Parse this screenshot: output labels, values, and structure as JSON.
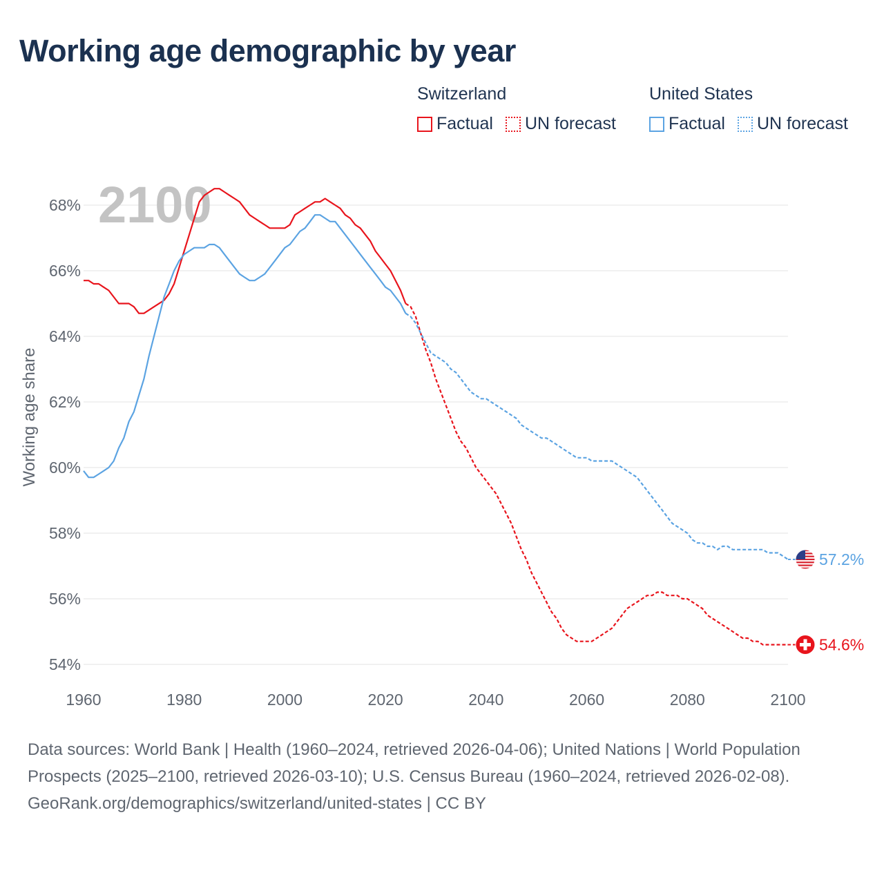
{
  "title": "Working age demographic by year",
  "legend": {
    "groups": [
      {
        "name": "Switzerland",
        "color": "#e8141c",
        "entries": [
          {
            "label": "Factual",
            "style": "solid"
          },
          {
            "label": "UN forecast",
            "style": "dotted"
          }
        ]
      },
      {
        "name": "United States",
        "color": "#5ba3e2",
        "entries": [
          {
            "label": "Factual",
            "style": "solid"
          },
          {
            "label": "UN forecast",
            "style": "dotted"
          }
        ]
      }
    ]
  },
  "chart_data": {
    "type": "line",
    "year_label": "2100",
    "ylabel": "Working age share",
    "xlabel": "",
    "xlim": [
      1960,
      2100
    ],
    "ylim": [
      54,
      68
    ],
    "xticks": [
      1960,
      1980,
      2000,
      2020,
      2040,
      2060,
      2080,
      2100
    ],
    "x_tick_labels": [
      "1960",
      "1980",
      "2000",
      "2020",
      "2040",
      "2060",
      "2080",
      "2100"
    ],
    "yticks": [
      54,
      56,
      58,
      60,
      62,
      64,
      66,
      68
    ],
    "y_tick_labels": [
      "54%",
      "56%",
      "58%",
      "60%",
      "62%",
      "64%",
      "66%",
      "68%"
    ],
    "grid": true,
    "forecast_start": 2024,
    "series": [
      {
        "name": "Switzerland",
        "color": "#e8141c",
        "end_label": "54.6%",
        "end_icon": "switzerland-flag",
        "points": [
          [
            1960,
            65.7
          ],
          [
            1961,
            65.7
          ],
          [
            1962,
            65.6
          ],
          [
            1963,
            65.6
          ],
          [
            1964,
            65.5
          ],
          [
            1965,
            65.4
          ],
          [
            1966,
            65.2
          ],
          [
            1967,
            65.0
          ],
          [
            1968,
            65.0
          ],
          [
            1969,
            65.0
          ],
          [
            1970,
            64.9
          ],
          [
            1971,
            64.7
          ],
          [
            1972,
            64.7
          ],
          [
            1974,
            64.9
          ],
          [
            1976,
            65.1
          ],
          [
            1977,
            65.3
          ],
          [
            1978,
            65.6
          ],
          [
            1979,
            66.1
          ],
          [
            1980,
            66.6
          ],
          [
            1981,
            67.1
          ],
          [
            1982,
            67.6
          ],
          [
            1983,
            68.1
          ],
          [
            1984,
            68.3
          ],
          [
            1985,
            68.4
          ],
          [
            1986,
            68.5
          ],
          [
            1987,
            68.5
          ],
          [
            1988,
            68.4
          ],
          [
            1989,
            68.3
          ],
          [
            1990,
            68.2
          ],
          [
            1991,
            68.1
          ],
          [
            1992,
            67.9
          ],
          [
            1993,
            67.7
          ],
          [
            1994,
            67.6
          ],
          [
            1995,
            67.5
          ],
          [
            1996,
            67.4
          ],
          [
            1997,
            67.3
          ],
          [
            1998,
            67.3
          ],
          [
            1999,
            67.3
          ],
          [
            2000,
            67.3
          ],
          [
            2001,
            67.4
          ],
          [
            2002,
            67.7
          ],
          [
            2003,
            67.8
          ],
          [
            2004,
            67.9
          ],
          [
            2005,
            68.0
          ],
          [
            2006,
            68.1
          ],
          [
            2007,
            68.1
          ],
          [
            2008,
            68.2
          ],
          [
            2009,
            68.1
          ],
          [
            2010,
            68.0
          ],
          [
            2011,
            67.9
          ],
          [
            2012,
            67.7
          ],
          [
            2013,
            67.6
          ],
          [
            2014,
            67.4
          ],
          [
            2015,
            67.3
          ],
          [
            2016,
            67.1
          ],
          [
            2017,
            66.9
          ],
          [
            2018,
            66.6
          ],
          [
            2019,
            66.4
          ],
          [
            2020,
            66.2
          ],
          [
            2021,
            66.0
          ],
          [
            2022,
            65.7
          ],
          [
            2023,
            65.4
          ],
          [
            2024,
            65.0
          ],
          [
            2025,
            64.9
          ],
          [
            2026,
            64.6
          ],
          [
            2027,
            64.1
          ],
          [
            2028,
            63.6
          ],
          [
            2029,
            63.2
          ],
          [
            2030,
            62.7
          ],
          [
            2031,
            62.3
          ],
          [
            2032,
            61.9
          ],
          [
            2033,
            61.5
          ],
          [
            2034,
            61.1
          ],
          [
            2035,
            60.8
          ],
          [
            2036,
            60.6
          ],
          [
            2037,
            60.3
          ],
          [
            2038,
            60.0
          ],
          [
            2039,
            59.8
          ],
          [
            2040,
            59.6
          ],
          [
            2041,
            59.4
          ],
          [
            2042,
            59.2
          ],
          [
            2043,
            58.9
          ],
          [
            2044,
            58.6
          ],
          [
            2045,
            58.3
          ],
          [
            2046,
            57.9
          ],
          [
            2047,
            57.5
          ],
          [
            2048,
            57.2
          ],
          [
            2049,
            56.8
          ],
          [
            2050,
            56.5
          ],
          [
            2051,
            56.2
          ],
          [
            2052,
            55.9
          ],
          [
            2053,
            55.6
          ],
          [
            2054,
            55.4
          ],
          [
            2055,
            55.1
          ],
          [
            2056,
            54.9
          ],
          [
            2057,
            54.8
          ],
          [
            2058,
            54.7
          ],
          [
            2059,
            54.7
          ],
          [
            2060,
            54.7
          ],
          [
            2061,
            54.7
          ],
          [
            2062,
            54.8
          ],
          [
            2063,
            54.9
          ],
          [
            2064,
            55.0
          ],
          [
            2065,
            55.1
          ],
          [
            2066,
            55.3
          ],
          [
            2067,
            55.5
          ],
          [
            2068,
            55.7
          ],
          [
            2069,
            55.8
          ],
          [
            2070,
            55.9
          ],
          [
            2071,
            56.0
          ],
          [
            2072,
            56.1
          ],
          [
            2073,
            56.1
          ],
          [
            2074,
            56.2
          ],
          [
            2075,
            56.2
          ],
          [
            2076,
            56.1
          ],
          [
            2077,
            56.1
          ],
          [
            2078,
            56.1
          ],
          [
            2079,
            56.0
          ],
          [
            2080,
            56.0
          ],
          [
            2081,
            55.9
          ],
          [
            2082,
            55.8
          ],
          [
            2083,
            55.7
          ],
          [
            2084,
            55.5
          ],
          [
            2085,
            55.4
          ],
          [
            2086,
            55.3
          ],
          [
            2087,
            55.2
          ],
          [
            2088,
            55.1
          ],
          [
            2089,
            55.0
          ],
          [
            2090,
            54.9
          ],
          [
            2091,
            54.8
          ],
          [
            2092,
            54.8
          ],
          [
            2093,
            54.7
          ],
          [
            2094,
            54.7
          ],
          [
            2095,
            54.6
          ],
          [
            2096,
            54.6
          ],
          [
            2097,
            54.6
          ],
          [
            2098,
            54.6
          ],
          [
            2099,
            54.6
          ],
          [
            2100,
            54.6
          ]
        ]
      },
      {
        "name": "United States",
        "color": "#5ba3e2",
        "end_label": "57.2%",
        "end_icon": "united-states-flag",
        "points": [
          [
            1960,
            59.9
          ],
          [
            1961,
            59.7
          ],
          [
            1962,
            59.7
          ],
          [
            1963,
            59.8
          ],
          [
            1964,
            59.9
          ],
          [
            1965,
            60.0
          ],
          [
            1966,
            60.2
          ],
          [
            1967,
            60.6
          ],
          [
            1968,
            60.9
          ],
          [
            1969,
            61.4
          ],
          [
            1970,
            61.7
          ],
          [
            1971,
            62.2
          ],
          [
            1972,
            62.7
          ],
          [
            1973,
            63.4
          ],
          [
            1974,
            64.0
          ],
          [
            1975,
            64.6
          ],
          [
            1976,
            65.2
          ],
          [
            1977,
            65.6
          ],
          [
            1978,
            66.0
          ],
          [
            1979,
            66.3
          ],
          [
            1980,
            66.5
          ],
          [
            1981,
            66.6
          ],
          [
            1982,
            66.7
          ],
          [
            1983,
            66.7
          ],
          [
            1984,
            66.7
          ],
          [
            1985,
            66.8
          ],
          [
            1986,
            66.8
          ],
          [
            1987,
            66.7
          ],
          [
            1988,
            66.5
          ],
          [
            1989,
            66.3
          ],
          [
            1990,
            66.1
          ],
          [
            1991,
            65.9
          ],
          [
            1992,
            65.8
          ],
          [
            1993,
            65.7
          ],
          [
            1994,
            65.7
          ],
          [
            1995,
            65.8
          ],
          [
            1996,
            65.9
          ],
          [
            1997,
            66.1
          ],
          [
            1998,
            66.3
          ],
          [
            1999,
            66.5
          ],
          [
            2000,
            66.7
          ],
          [
            2001,
            66.8
          ],
          [
            2002,
            67.0
          ],
          [
            2003,
            67.2
          ],
          [
            2004,
            67.3
          ],
          [
            2005,
            67.5
          ],
          [
            2006,
            67.7
          ],
          [
            2007,
            67.7
          ],
          [
            2008,
            67.6
          ],
          [
            2009,
            67.5
          ],
          [
            2010,
            67.5
          ],
          [
            2011,
            67.3
          ],
          [
            2012,
            67.1
          ],
          [
            2013,
            66.9
          ],
          [
            2014,
            66.7
          ],
          [
            2015,
            66.5
          ],
          [
            2016,
            66.3
          ],
          [
            2017,
            66.1
          ],
          [
            2018,
            65.9
          ],
          [
            2019,
            65.7
          ],
          [
            2020,
            65.5
          ],
          [
            2021,
            65.4
          ],
          [
            2022,
            65.2
          ],
          [
            2023,
            65.0
          ],
          [
            2024,
            64.7
          ],
          [
            2025,
            64.6
          ],
          [
            2026,
            64.4
          ],
          [
            2027,
            64.1
          ],
          [
            2028,
            63.8
          ],
          [
            2029,
            63.5
          ],
          [
            2030,
            63.4
          ],
          [
            2031,
            63.3
          ],
          [
            2032,
            63.2
          ],
          [
            2033,
            63.0
          ],
          [
            2034,
            62.9
          ],
          [
            2035,
            62.7
          ],
          [
            2036,
            62.5
          ],
          [
            2037,
            62.3
          ],
          [
            2038,
            62.2
          ],
          [
            2039,
            62.1
          ],
          [
            2040,
            62.1
          ],
          [
            2041,
            62.0
          ],
          [
            2042,
            61.9
          ],
          [
            2043,
            61.8
          ],
          [
            2044,
            61.7
          ],
          [
            2045,
            61.6
          ],
          [
            2046,
            61.5
          ],
          [
            2047,
            61.3
          ],
          [
            2048,
            61.2
          ],
          [
            2049,
            61.1
          ],
          [
            2050,
            61.0
          ],
          [
            2051,
            60.9
          ],
          [
            2052,
            60.9
          ],
          [
            2053,
            60.8
          ],
          [
            2054,
            60.7
          ],
          [
            2055,
            60.6
          ],
          [
            2056,
            60.5
          ],
          [
            2057,
            60.4
          ],
          [
            2058,
            60.3
          ],
          [
            2059,
            60.3
          ],
          [
            2060,
            60.3
          ],
          [
            2061,
            60.2
          ],
          [
            2062,
            60.2
          ],
          [
            2063,
            60.2
          ],
          [
            2064,
            60.2
          ],
          [
            2065,
            60.2
          ],
          [
            2066,
            60.1
          ],
          [
            2067,
            60.0
          ],
          [
            2068,
            59.9
          ],
          [
            2069,
            59.8
          ],
          [
            2070,
            59.7
          ],
          [
            2071,
            59.5
          ],
          [
            2072,
            59.3
          ],
          [
            2073,
            59.1
          ],
          [
            2074,
            58.9
          ],
          [
            2075,
            58.7
          ],
          [
            2076,
            58.5
          ],
          [
            2077,
            58.3
          ],
          [
            2078,
            58.2
          ],
          [
            2079,
            58.1
          ],
          [
            2080,
            58.0
          ],
          [
            2081,
            57.8
          ],
          [
            2082,
            57.7
          ],
          [
            2083,
            57.7
          ],
          [
            2084,
            57.6
          ],
          [
            2085,
            57.6
          ],
          [
            2086,
            57.5
          ],
          [
            2087,
            57.6
          ],
          [
            2088,
            57.6
          ],
          [
            2089,
            57.5
          ],
          [
            2090,
            57.5
          ],
          [
            2091,
            57.5
          ],
          [
            2092,
            57.5
          ],
          [
            2093,
            57.5
          ],
          [
            2094,
            57.5
          ],
          [
            2095,
            57.5
          ],
          [
            2096,
            57.4
          ],
          [
            2097,
            57.4
          ],
          [
            2098,
            57.4
          ],
          [
            2099,
            57.3
          ],
          [
            2100,
            57.2
          ]
        ]
      }
    ]
  },
  "footer": {
    "sources": "Data sources: World Bank | Health (1960–2024, retrieved 2026-04-06); United Nations | World Population Prospects (2025–2100, retrieved 2026-03-10); U.S. Census Bureau (1960–2024, retrieved 2026-02-08).",
    "credit": "GeoRank.org/demographics/switzerland/united-states | CC BY"
  }
}
